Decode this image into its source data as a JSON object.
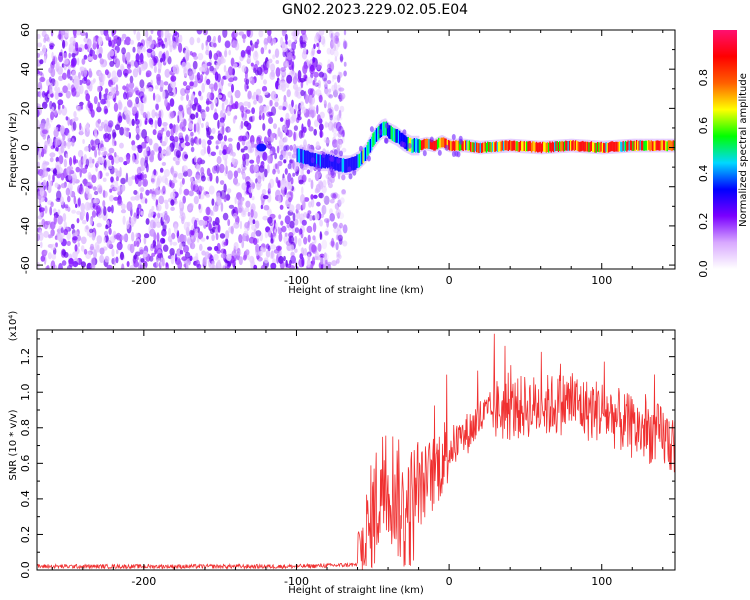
{
  "title": "GN02.2023.229.02.05.E04",
  "chart_data": [
    {
      "type": "heatmap",
      "title": "",
      "xlabel": "Height of straight line (km)",
      "ylabel": "Frequency (Hz)",
      "xlim": [
        -270,
        148
      ],
      "ylim": [
        -62,
        60
      ],
      "xticks": [
        -200,
        -100,
        0,
        100
      ],
      "yticks": [
        -60,
        -40,
        -20,
        0,
        20,
        40,
        60
      ],
      "noise_region_x": [
        -270,
        -68
      ],
      "track": {
        "x": [
          -128,
          -120,
          -100,
          -95,
          -90,
          -85,
          -80,
          -75,
          -70,
          -65,
          -60,
          -55,
          -50,
          -45,
          -42,
          -40,
          -35,
          -30,
          -25,
          -20,
          -15,
          -10,
          -5,
          0,
          10,
          20,
          40,
          60,
          80,
          100,
          120,
          148
        ],
        "freq": [
          0,
          0,
          -4,
          -5,
          -6,
          -7,
          -7,
          -8,
          -9,
          -9,
          -7,
          -3,
          4,
          9,
          10,
          8,
          6,
          3,
          1,
          1,
          2,
          1,
          3,
          1,
          1,
          0,
          1,
          0,
          1,
          0,
          1,
          1
        ]
      },
      "colorbar": {
        "label": "Normalized spectral amplitude",
        "ticks": [
          0.0,
          0.2,
          0.4,
          0.6,
          0.8
        ],
        "range": [
          0,
          1
        ],
        "colors": [
          "#ffffff",
          "#d8a8ff",
          "#7a00ff",
          "#0000ff",
          "#00d8ff",
          "#00ff00",
          "#ffff00",
          "#ff6000",
          "#ff0000",
          "#ff1070"
        ]
      }
    },
    {
      "type": "line",
      "title": "",
      "xlabel": "Height of straight line (km)",
      "ylabel": "SNR (10 * v/v)",
      "y_multiplier_label": "(x10⁴)",
      "xlim": [
        -270,
        148
      ],
      "ylim": [
        0,
        1.35
      ],
      "xticks": [
        -200,
        -100,
        0,
        100
      ],
      "yticks": [
        0.0,
        0.2,
        0.4,
        0.6,
        0.8,
        1.0,
        1.2
      ],
      "color": "#f03030",
      "envelope": {
        "x": [
          -270,
          -200,
          -100,
          -60,
          -55,
          -50,
          -45,
          -40,
          -35,
          -30,
          -25,
          -20,
          -15,
          -10,
          -5,
          0,
          10,
          20,
          30,
          40,
          50,
          60,
          70,
          80,
          90,
          100,
          110,
          120,
          130,
          140,
          148
        ],
        "y": [
          0.02,
          0.02,
          0.02,
          0.03,
          0.1,
          0.3,
          0.45,
          0.5,
          0.45,
          0.3,
          0.35,
          0.45,
          0.5,
          0.55,
          0.62,
          0.68,
          0.75,
          0.85,
          0.9,
          0.9,
          0.92,
          0.92,
          0.93,
          0.95,
          0.9,
          0.9,
          0.85,
          0.8,
          0.78,
          0.75,
          0.7
        ]
      }
    }
  ]
}
